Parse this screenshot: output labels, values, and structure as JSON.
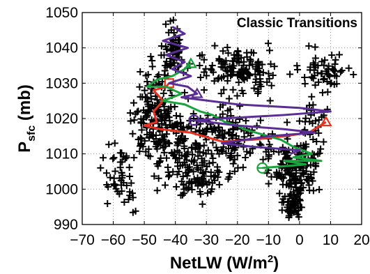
{
  "chart_data": {
    "type": "scatter",
    "title": "Classic Transitions",
    "xlabel_main": "NetLW (W/m",
    "xlabel_sup": "2",
    "xlabel_end": ")",
    "ylabel_main": "P",
    "ylabel_sub": "sfc",
    "ylabel_end": " (mb)",
    "xlim": [
      -70,
      20
    ],
    "ylim": [
      990,
      1050
    ],
    "xticks": [
      -70,
      -60,
      -50,
      -40,
      -30,
      -20,
      -10,
      0,
      10,
      20
    ],
    "yticks": [
      990,
      1000,
      1010,
      1020,
      1030,
      1040,
      1050
    ],
    "grid": true,
    "colors": {
      "scatter": "#000000",
      "red": "#e8321e",
      "green": "#1aa33c",
      "purple": "#5a2d96"
    },
    "scatter_clusters": [
      {
        "cx": -41,
        "cy": 1039,
        "sx": 2.5,
        "sy": 5,
        "n": 60
      },
      {
        "cx": -47,
        "cy": 1020,
        "sx": 5,
        "sy": 9,
        "n": 160
      },
      {
        "cx": -38,
        "cy": 1012,
        "sx": 6,
        "sy": 9,
        "n": 120
      },
      {
        "cx": -58,
        "cy": 1005,
        "sx": 4,
        "sy": 7,
        "n": 50
      },
      {
        "cx": -20,
        "cy": 1034,
        "sx": 10,
        "sy": 4,
        "n": 130
      },
      {
        "cx": -22,
        "cy": 1014,
        "sx": 9,
        "sy": 7,
        "n": 140
      },
      {
        "cx": -2,
        "cy": 1006,
        "sx": 5,
        "sy": 6,
        "n": 140
      },
      {
        "cx": -2,
        "cy": 996,
        "sx": 2.5,
        "sy": 3,
        "n": 60
      },
      {
        "cx": 8,
        "cy": 1033,
        "sx": 6,
        "sy": 4,
        "n": 60
      },
      {
        "cx": 5,
        "cy": 1017,
        "sx": 4,
        "sy": 7,
        "n": 40
      },
      {
        "cx": -32,
        "cy": 1003,
        "sx": 6,
        "sy": 4,
        "n": 50
      }
    ],
    "series": [
      {
        "color_key": "red",
        "x": [
          8.5,
          3,
          -5,
          -15,
          -25,
          -35,
          -45,
          -50,
          -46,
          -47,
          -44,
          -47,
          -43,
          -42
        ],
        "y": [
          1019,
          1016,
          1015,
          1014,
          1013.5,
          1016,
          1017,
          1018,
          1019,
          1022,
          1025,
          1028,
          1029,
          1030
        ],
        "start_marker": "triangle",
        "end_marker": "square",
        "start_index": 0,
        "end_index": 13
      },
      {
        "color_key": "green",
        "x": [
          -35,
          -37,
          -41,
          -46,
          -49,
          -43,
          -38,
          -44,
          -37,
          -32,
          -28,
          -24,
          -20,
          -18,
          -14,
          -10,
          -6,
          -2,
          4,
          -2,
          7,
          -5,
          2,
          -12
        ],
        "y": [
          1035.5,
          1034,
          1032,
          1031,
          1029,
          1029,
          1027,
          1025,
          1024,
          1022,
          1021,
          1019,
          1018,
          1017,
          1016,
          1015,
          1014,
          1012,
          1010,
          1009,
          1008,
          1008,
          1007,
          1006
        ],
        "start_marker": "triangle",
        "end_marker": "circle",
        "start_index": 0,
        "end_index": 23
      },
      {
        "color_key": "purple",
        "x": [
          -41,
          -37,
          -44,
          -36,
          -43,
          -37,
          -41,
          -35,
          -42,
          -36,
          -33,
          -38,
          -20,
          0,
          10,
          -5,
          -25,
          -34,
          -20,
          -5,
          5,
          -10,
          -25,
          -15,
          0,
          -3
        ],
        "y": [
          1046,
          1044,
          1042,
          1040,
          1038,
          1036,
          1034,
          1032,
          1030,
          1029,
          1027,
          1026,
          1024,
          1023,
          1022,
          1021,
          1020,
          1019.5,
          1018,
          1017,
          1016,
          1015,
          1013,
          1012,
          1011,
          1010
        ],
        "start_marker": "triangle",
        "end_marker": "circle",
        "start_index": 10,
        "end_index": 17
      }
    ]
  }
}
